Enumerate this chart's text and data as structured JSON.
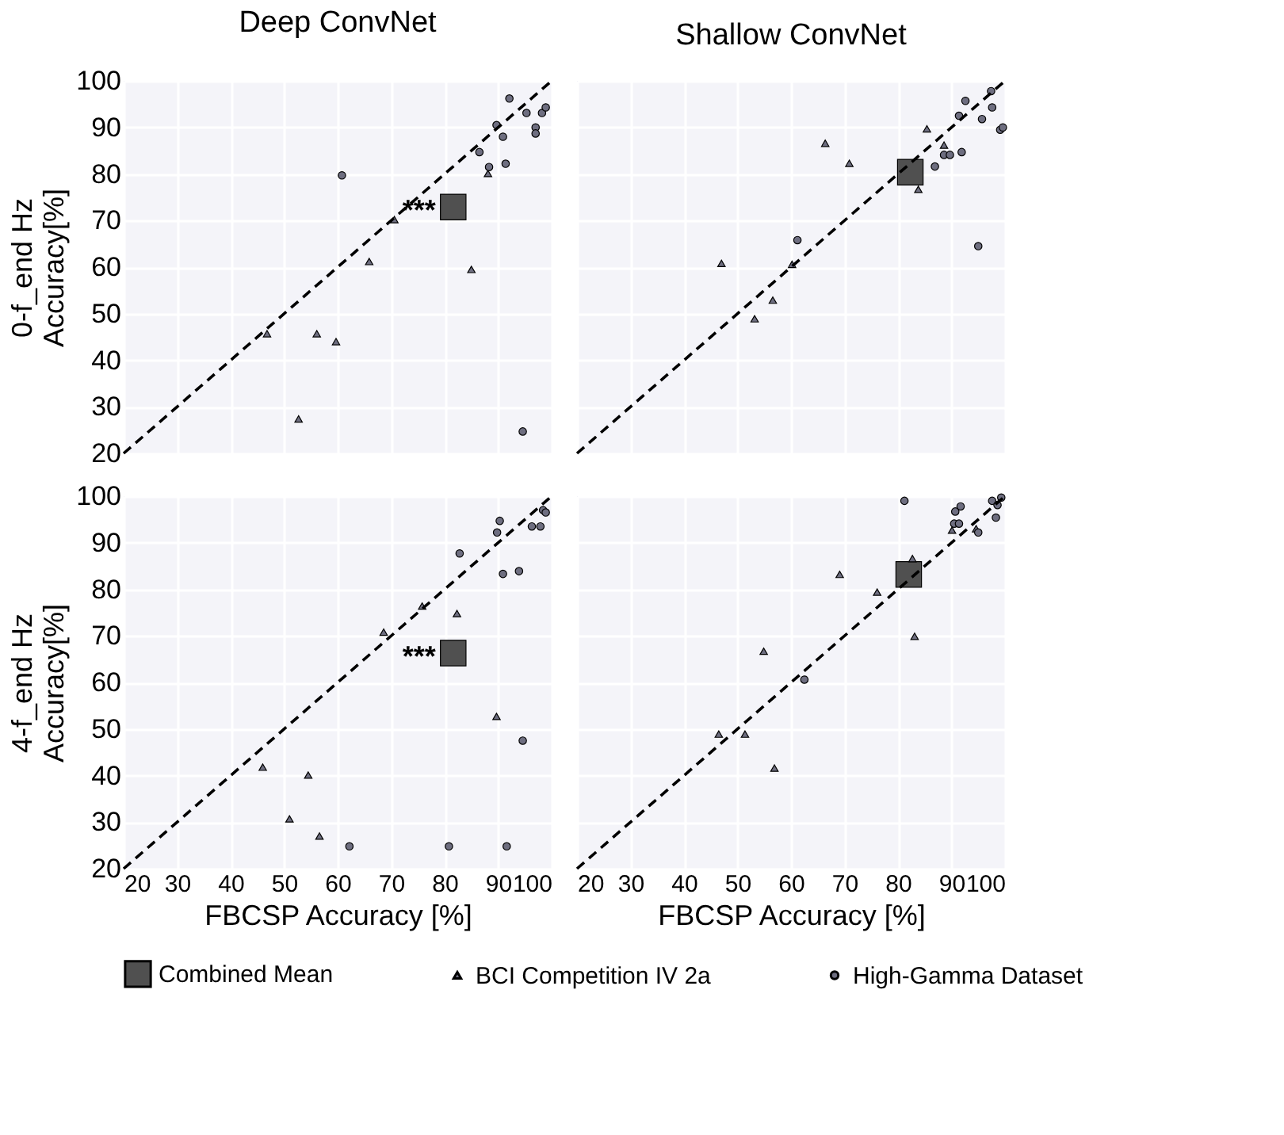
{
  "chart_data": [
    {
      "type": "scatter",
      "title": "Deep ConvNet",
      "ylabel": "0-f_end Hz\nAccuracy[%]",
      "xlim": [
        20,
        100
      ],
      "ylim": [
        20,
        100
      ],
      "xticks": [
        20,
        30,
        40,
        50,
        60,
        70,
        80,
        90,
        100
      ],
      "yticks": [
        20,
        30,
        40,
        50,
        60,
        70,
        80,
        90,
        100
      ],
      "grid": true,
      "legend": "bottom",
      "tick_labels": "y",
      "annotations": [
        {
          "text": "***",
          "x": 81.6,
          "y": 72.9
        }
      ],
      "series": [
        {
          "type": "line",
          "x": [
            20,
            100
          ],
          "values": [
            20,
            100
          ],
          "color": "#000000",
          "line_style": "dashed"
        },
        {
          "name": "Combined Mean",
          "marker": "square",
          "color": "#505050",
          "x": [
            81.6
          ],
          "values": [
            72.9
          ]
        },
        {
          "name": "BCI Competition IV 2a",
          "marker": "triangle",
          "color": "#6e6e80",
          "x": [
            88.1,
            70.6,
            65.9,
            85.0,
            46.8,
            56.1,
            59.7,
            52.7
          ],
          "values": [
            80.1,
            70.2,
            61.2,
            59.5,
            45.7,
            45.7,
            44.0,
            27.4
          ]
        },
        {
          "name": "High-Gamma Dataset",
          "marker": "circle",
          "color": "#6e6e80",
          "x": [
            92.1,
            95.3,
            98.2,
            98.9,
            89.7,
            97.0,
            97.0,
            90.9,
            86.5,
            88.3,
            91.4,
            60.8,
            94.6
          ],
          "values": [
            96.2,
            93.1,
            93.1,
            94.3,
            90.5,
            90.0,
            88.7,
            88.0,
            84.7,
            81.5,
            82.2,
            79.7,
            24.7
          ]
        }
      ]
    },
    {
      "type": "scatter",
      "title": "Shallow ConvNet",
      "xlim": [
        20,
        100
      ],
      "ylim": [
        20,
        100
      ],
      "xticks": [
        20,
        30,
        40,
        50,
        60,
        70,
        80,
        90,
        100
      ],
      "yticks": [
        20,
        30,
        40,
        50,
        60,
        70,
        80,
        90,
        100
      ],
      "grid": true,
      "legend": "bottom",
      "tick_labels": false,
      "series": [
        {
          "type": "line",
          "x": [
            20,
            100
          ],
          "values": [
            20,
            100
          ],
          "color": "#000000",
          "line_style": "dashed"
        },
        {
          "name": "Combined Mean",
          "marker": "square",
          "color": "#505050",
          "x": [
            82.3
          ],
          "values": [
            80.4
          ]
        },
        {
          "name": "BCI Competition IV 2a",
          "marker": "triangle",
          "color": "#6e6e80",
          "x": [
            85.4,
            88.6,
            83.8,
            66.4,
            70.9,
            47.0,
            56.6,
            53.2,
            60.2
          ],
          "values": [
            89.7,
            86.2,
            76.7,
            86.6,
            82.3,
            60.8,
            52.9,
            48.9,
            60.6
          ]
        },
        {
          "name": "High-Gamma Dataset",
          "marker": "circle",
          "color": "#6e6e80",
          "x": [
            92.6,
            97.6,
            95.7,
            91.4,
            99.1,
            99.6,
            88.6,
            89.7,
            91.9,
            86.9,
            95.0,
            61.2,
            97.4
          ],
          "values": [
            95.7,
            94.3,
            91.8,
            92.5,
            89.5,
            90.0,
            84.1,
            84.1,
            84.7,
            81.6,
            64.5,
            65.8,
            97.8
          ]
        }
      ]
    },
    {
      "type": "scatter",
      "xlabel": "FBCSP Accuracy [%]",
      "ylabel": "4-f_end Hz\nAccuracy[%]",
      "xlim": [
        20,
        100
      ],
      "ylim": [
        20,
        100
      ],
      "xticks": [
        20,
        30,
        40,
        50,
        60,
        70,
        80,
        90,
        100
      ],
      "yticks": [
        20,
        30,
        40,
        50,
        60,
        70,
        80,
        90,
        100
      ],
      "grid": true,
      "legend": "bottom",
      "annotations": [
        {
          "text": "***",
          "x": 81.6,
          "y": 66.3
        }
      ],
      "series": [
        {
          "type": "line",
          "x": [
            20,
            100
          ],
          "values": [
            20,
            100
          ],
          "color": "#000000",
          "line_style": "dashed"
        },
        {
          "name": "Combined Mean",
          "marker": "square",
          "color": "#505050",
          "x": [
            81.6
          ],
          "values": [
            66.3
          ]
        },
        {
          "name": "BCI Competition IV 2a",
          "marker": "triangle",
          "color": "#6e6e80",
          "x": [
            82.3,
            68.6,
            75.8,
            89.7,
            46.0,
            54.5,
            51.0,
            56.6
          ],
          "values": [
            74.8,
            70.8,
            76.4,
            52.7,
            41.8,
            40.1,
            30.7,
            27.0
          ]
        },
        {
          "name": "High-Gamma Dataset",
          "marker": "circle",
          "color": "#6e6e80",
          "x": [
            90.3,
            89.8,
            96.3,
            97.9,
            98.4,
            98.9,
            82.8,
            90.9,
            93.9,
            94.6,
            62.2,
            80.8,
            91.6
          ],
          "values": [
            94.7,
            92.2,
            93.5,
            93.5,
            97.0,
            96.5,
            87.7,
            83.3,
            83.9,
            47.5,
            24.8,
            24.8,
            24.8
          ]
        }
      ]
    },
    {
      "type": "scatter",
      "xlabel": "FBCSP Accuracy [%]",
      "xlim": [
        20,
        100
      ],
      "ylim": [
        20,
        100
      ],
      "xticks": [
        20,
        30,
        40,
        50,
        60,
        70,
        80,
        90,
        100
      ],
      "yticks": [
        20,
        30,
        40,
        50,
        60,
        70,
        80,
        90,
        100
      ],
      "grid": true,
      "legend": "bottom",
      "tick_labels": "x",
      "series": [
        {
          "type": "line",
          "x": [
            20,
            100
          ],
          "values": [
            20,
            100
          ],
          "color": "#000000",
          "line_style": "dashed"
        },
        {
          "name": "Combined Mean",
          "marker": "square",
          "color": "#505050",
          "x": [
            82.0
          ],
          "values": [
            83.2
          ]
        },
        {
          "name": "BCI Competition IV 2a",
          "marker": "triangle",
          "color": "#6e6e80",
          "x": [
            82.7,
            69.1,
            76.1,
            83.1,
            54.9,
            46.5,
            51.4,
            56.9,
            90.1,
            94.6
          ],
          "values": [
            86.6,
            83.2,
            79.4,
            69.9,
            66.7,
            48.9,
            48.9,
            41.6,
            92.7,
            93.0
          ]
        },
        {
          "name": "High-Gamma Dataset",
          "marker": "circle",
          "color": "#6e6e80",
          "x": [
            81.2,
            91.7,
            90.7,
            97.6,
            98.6,
            98.3,
            90.5,
            91.4,
            95.0,
            62.5,
            99.3
          ],
          "values": [
            99.0,
            97.8,
            96.7,
            99.0,
            98.1,
            95.4,
            94.1,
            94.1,
            92.2,
            60.6,
            99.7
          ]
        }
      ]
    }
  ]
}
